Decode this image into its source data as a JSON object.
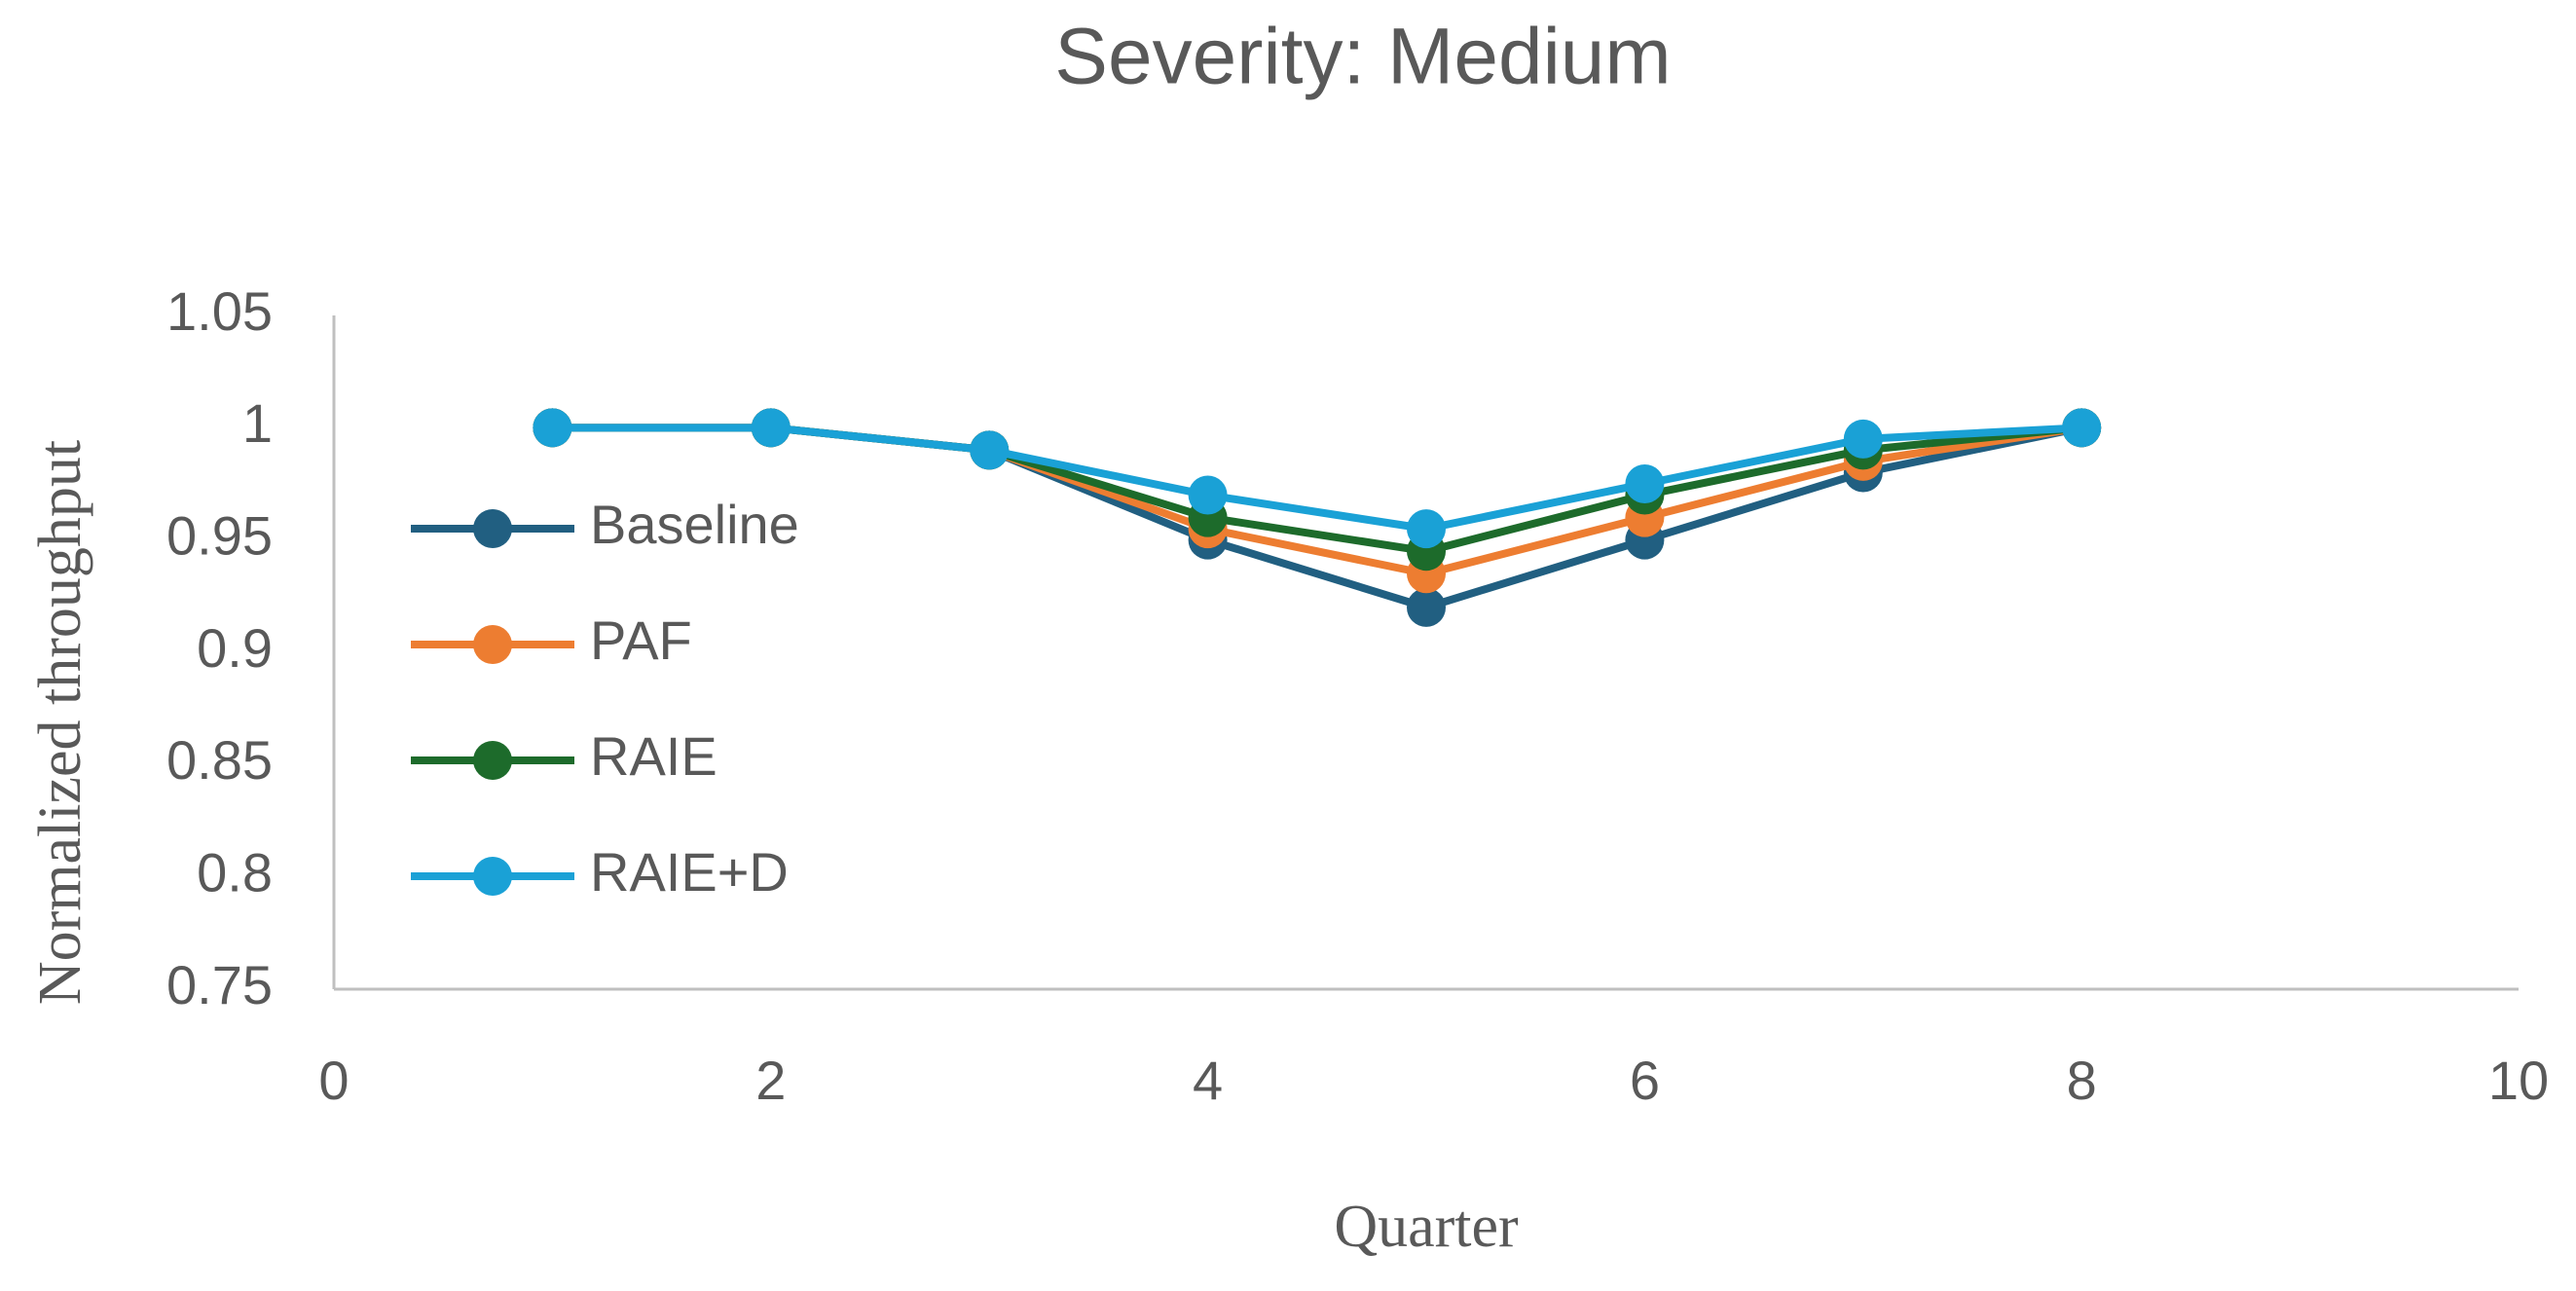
{
  "chart_data": {
    "type": "line",
    "title": "Severity: Medium",
    "x_label": "Quarter",
    "y_label": "Normalized throughput",
    "x": [
      1,
      2,
      3,
      4,
      5,
      6,
      7,
      8
    ],
    "series": [
      {
        "name": "Baseline",
        "color": "#215f81",
        "values": [
          1,
          1,
          0.99,
          0.95,
          0.92,
          0.95,
          0.98,
          1
        ]
      },
      {
        "name": "PAF",
        "color": "#ed7d31",
        "values": [
          1,
          1,
          0.99,
          0.955,
          0.935,
          0.96,
          0.985,
          1
        ]
      },
      {
        "name": "RAIE",
        "color": "#1d6b2b",
        "values": [
          1,
          1,
          0.99,
          0.96,
          0.945,
          0.97,
          0.99,
          1
        ]
      },
      {
        "name": "RAIE+D",
        "color": "#1aa1d6",
        "values": [
          1,
          1,
          0.99,
          0.97,
          0.955,
          0.975,
          0.995,
          1
        ]
      }
    ],
    "xlim": [
      0,
      10
    ],
    "xticks": [
      0,
      2,
      4,
      6,
      8,
      10
    ],
    "ylim": [
      0.75,
      1.05
    ],
    "yticks": [
      0.75,
      0.8,
      0.85,
      0.9,
      0.95,
      1,
      1.05
    ],
    "grid": false,
    "legend": "left"
  }
}
